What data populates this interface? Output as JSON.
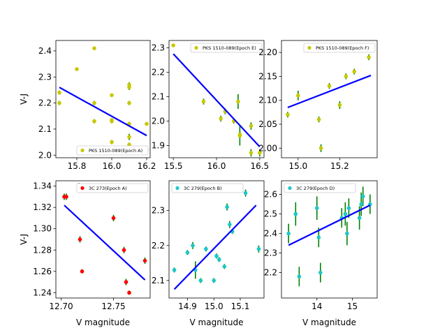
{
  "chart_data": [
    {
      "type": "scatter",
      "legend": "PKS 1510-089(Epoch A)",
      "legend_position": "lower-right",
      "marker_color": "#c8c800",
      "errorbar_color": "#008000",
      "fit_color": "#0000ff",
      "xlim": [
        15.68,
        16.22
      ],
      "ylim": [
        1.99,
        2.44
      ],
      "xticks": [
        15.8,
        16.0,
        16.2
      ],
      "xtick_labels": [
        "15.8",
        "16.0",
        "16.2"
      ],
      "yticks": [
        2.0,
        2.1,
        2.2,
        2.3,
        2.4
      ],
      "ytick_labels": [
        "2.0",
        "2.1",
        "2.2",
        "2.3",
        "2.4"
      ],
      "xlabel": "",
      "ylabel": "V-J",
      "x": [
        15.7,
        15.7,
        15.8,
        15.9,
        15.9,
        15.9,
        16.0,
        16.0,
        16.0,
        16.0,
        16.1,
        16.1,
        16.1,
        16.1,
        16.1,
        16.1,
        16.2,
        16.2
      ],
      "y": [
        2.24,
        2.2,
        2.33,
        2.41,
        2.2,
        2.13,
        2.23,
        2.13,
        2.05,
        2.135,
        2.27,
        2.26,
        2.2,
        2.12,
        2.07,
        2.04,
        2.12,
        2.02
      ],
      "yerr": [
        0.008,
        0.008,
        0.006,
        0.006,
        0.008,
        0.008,
        0.006,
        0.008,
        0.008,
        0.006,
        0.01,
        0.01,
        0.008,
        0.008,
        0.012,
        0.008,
        0.006,
        0.008
      ],
      "fit": {
        "x": [
          15.7,
          16.2
        ],
        "y": [
          2.26,
          2.075
        ]
      }
    },
    {
      "type": "scatter",
      "legend": "PKS 1510-089(Epoch E)",
      "legend_position": "top-right",
      "marker_color": "#c8c800",
      "errorbar_color": "#008000",
      "fit_color": "#0000ff",
      "xlim": [
        15.45,
        16.55
      ],
      "ylim": [
        1.85,
        2.33
      ],
      "xticks": [
        15.5,
        16.0,
        16.5
      ],
      "xtick_labels": [
        "15.5",
        "16.0",
        "16.5"
      ],
      "yticks": [
        1.9,
        2.0,
        2.1,
        2.2,
        2.3
      ],
      "ytick_labels": [
        "1.9",
        "2.0",
        "2.1",
        "2.2",
        "2.3"
      ],
      "xlabel": "",
      "ylabel": "",
      "x": [
        15.5,
        15.85,
        16.05,
        16.1,
        16.2,
        16.25,
        16.27,
        16.27,
        16.4,
        16.4,
        16.5
      ],
      "y": [
        2.31,
        2.08,
        2.01,
        2.04,
        2.0,
        2.08,
        1.94,
        1.945,
        1.98,
        1.87,
        1.87
      ],
      "yerr": [
        0.005,
        0.012,
        0.012,
        0.012,
        0.01,
        0.03,
        0.04,
        0.01,
        0.015,
        0.015,
        0.015
      ],
      "fit": {
        "x": [
          15.5,
          16.5
        ],
        "y": [
          2.275,
          1.895
        ]
      }
    },
    {
      "type": "scatter",
      "legend": "PKS 1510-089(Epoch F)",
      "legend_position": "top-right",
      "marker_color": "#c8c800",
      "errorbar_color": "#008000",
      "fit_color": "#0000ff",
      "xlim": [
        14.92,
        15.38
      ],
      "ylim": [
        1.98,
        2.225
      ],
      "xticks": [
        15.0,
        15.2
      ],
      "xtick_labels": [
        "15.0",
        "15.2"
      ],
      "yticks": [
        2.0,
        2.05,
        2.1,
        2.15,
        2.2
      ],
      "ytick_labels": [
        "2.00",
        "2.05",
        "2.10",
        "2.15",
        "2.20"
      ],
      "xlabel": "",
      "ylabel": "",
      "x": [
        14.95,
        15.0,
        15.1,
        15.11,
        15.15,
        15.2,
        15.23,
        15.27,
        15.34,
        15.35
      ],
      "y": [
        2.07,
        2.11,
        2.06,
        2.0,
        2.13,
        2.09,
        2.15,
        2.16,
        2.19,
        2.21
      ],
      "yerr": [
        0.006,
        0.01,
        0.006,
        0.008,
        0.006,
        0.008,
        0.006,
        0.006,
        0.006,
        0.008
      ],
      "fit": {
        "x": [
          14.95,
          15.35
        ],
        "y": [
          2.085,
          2.152
        ]
      }
    },
    {
      "type": "scatter",
      "legend": "3C 273(Epoch A)",
      "legend_position": "top-right",
      "marker_color": "#ff0000",
      "errorbar_color": "#008000",
      "fit_color": "#0000ff",
      "xlim": [
        12.695,
        12.785
      ],
      "ylim": [
        1.235,
        1.345
      ],
      "xticks": [
        12.7,
        12.75
      ],
      "xtick_labels": [
        "12.70",
        "12.75"
      ],
      "yticks": [
        1.24,
        1.26,
        1.28,
        1.3,
        1.32,
        1.34
      ],
      "ytick_labels": [
        "1.24",
        "1.26",
        "1.28",
        "1.30",
        "1.32",
        "1.34"
      ],
      "xlabel": "V magnitude",
      "ylabel": "V-J",
      "x": [
        12.703,
        12.705,
        12.717,
        12.718,
        12.72,
        12.75,
        12.76,
        12.762,
        12.765,
        12.78
      ],
      "y": [
        1.33,
        1.33,
        1.34,
        1.29,
        1.26,
        1.31,
        1.28,
        1.25,
        1.24,
        1.27
      ],
      "yerr": [
        0.003,
        0.003,
        0.003,
        0.003,
        0.002,
        0.003,
        0.003,
        0.003,
        0.002,
        0.003
      ],
      "fit": {
        "x": [
          12.703,
          12.78
        ],
        "y": [
          1.322,
          1.252
        ]
      }
    },
    {
      "type": "scatter",
      "legend": "3C 279(Epoch B)",
      "legend_position": "top-left",
      "marker_color": "#1ac8c8",
      "errorbar_color": "#008000",
      "fit_color": "#0000ff",
      "xlim": [
        14.83,
        15.19
      ],
      "ylim": [
        2.05,
        2.385
      ],
      "xticks": [
        14.9,
        15.0,
        15.1
      ],
      "xtick_labels": [
        "14.9",
        "15.0",
        "15.1"
      ],
      "yticks": [
        2.1,
        2.2,
        2.3
      ],
      "ytick_labels": [
        "2.1",
        "2.2",
        "2.3"
      ],
      "xlabel": "V magnitude",
      "ylabel": "",
      "x": [
        14.85,
        14.9,
        14.92,
        14.93,
        14.95,
        14.97,
        15.0,
        15.01,
        15.02,
        15.04,
        15.05,
        15.06,
        15.07,
        15.12,
        15.17
      ],
      "y": [
        2.13,
        2.18,
        2.2,
        2.13,
        2.1,
        2.19,
        2.1,
        2.17,
        2.16,
        2.14,
        2.31,
        2.26,
        2.24,
        2.35,
        2.19
      ],
      "yerr": [
        0.007,
        0.007,
        0.01,
        0.025,
        0.007,
        0.007,
        0.007,
        0.007,
        0.007,
        0.007,
        0.01,
        0.01,
        0.007,
        0.01,
        0.01
      ],
      "fit": {
        "x": [
          14.85,
          15.16
        ],
        "y": [
          2.075,
          2.315
        ]
      }
    },
    {
      "type": "scatter",
      "legend": "3C 279(Epoch D)",
      "legend_position": "top-left",
      "marker_color": "#1ac8c8",
      "errorbar_color": "#008000",
      "fit_color": "#0000ff",
      "xlim": [
        13.0,
        15.7
      ],
      "ylim": [
        2.07,
        2.67
      ],
      "xticks": [
        14,
        15
      ],
      "xtick_labels": [
        "14",
        "15"
      ],
      "yticks": [
        2.2,
        2.3,
        2.4,
        2.5,
        2.6
      ],
      "ytick_labels": [
        "2.2",
        "2.3",
        "2.4",
        "2.5",
        "2.6"
      ],
      "xlabel": "V magnitude",
      "ylabel": "",
      "x": [
        13.2,
        13.4,
        13.5,
        14.0,
        14.05,
        14.1,
        14.7,
        14.8,
        14.85,
        14.9,
        15.2,
        15.25,
        15.3,
        15.5
      ],
      "y": [
        2.4,
        2.5,
        2.18,
        2.53,
        2.38,
        2.2,
        2.48,
        2.5,
        2.4,
        2.53,
        2.48,
        2.55,
        2.59,
        2.55
      ],
      "yerr": [
        0.05,
        0.06,
        0.05,
        0.06,
        0.05,
        0.05,
        0.05,
        0.06,
        0.06,
        0.05,
        0.06,
        0.06,
        0.05,
        0.05
      ],
      "fit": {
        "x": [
          13.2,
          15.5
        ],
        "y": [
          2.34,
          2.545
        ]
      }
    }
  ]
}
